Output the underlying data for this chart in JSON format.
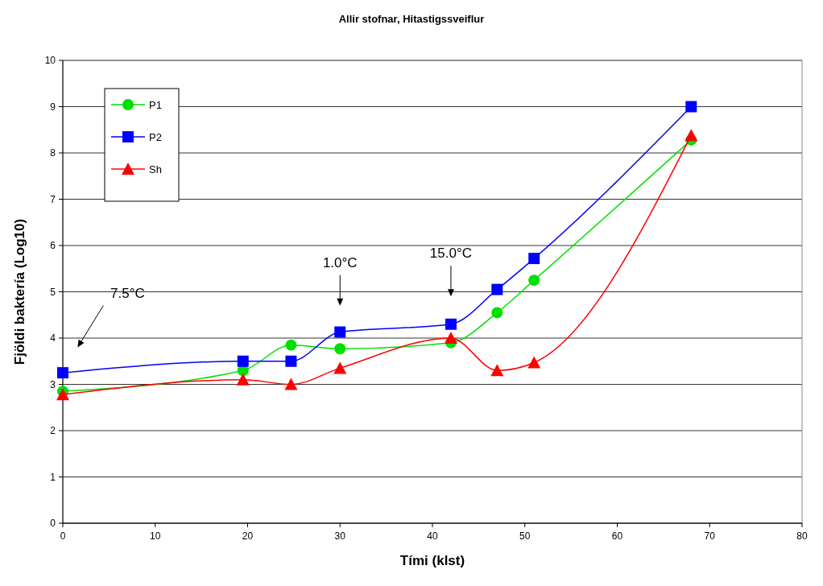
{
  "chart_data": {
    "type": "line",
    "title": "Allir stofnar, Hitastigssveiflur",
    "xlabel": "Tími (klst)",
    "ylabel": "Fjöldi baktería (Log10)",
    "xlim": [
      0,
      80
    ],
    "xticks": [
      0,
      10,
      20,
      30,
      40,
      50,
      60,
      70,
      80
    ],
    "ylim": [
      0,
      10
    ],
    "yticks": [
      0,
      1,
      2,
      3,
      4,
      5,
      6,
      7,
      8,
      9,
      10
    ],
    "grid": "y",
    "legend": "top left",
    "series": [
      {
        "name": "P1",
        "color": "#00e000",
        "marker": "circle",
        "x": [
          0,
          19.5,
          24.7,
          30,
          42,
          47,
          51,
          68
        ],
        "values": [
          2.85,
          3.3,
          3.85,
          3.77,
          3.9,
          4.55,
          5.25,
          8.28
        ]
      },
      {
        "name": "P2",
        "color": "#0000ff",
        "marker": "square",
        "x": [
          0,
          19.5,
          24.7,
          30,
          42,
          47,
          51,
          68
        ],
        "values": [
          3.25,
          3.5,
          3.5,
          4.13,
          4.3,
          5.05,
          5.72,
          9.0
        ]
      },
      {
        "name": "Sh",
        "color": "#ff0000",
        "marker": "triangle",
        "x": [
          0,
          19.5,
          24.7,
          30,
          42,
          47,
          51,
          68
        ],
        "values": [
          2.78,
          3.1,
          3.0,
          3.35,
          4.0,
          3.3,
          3.47,
          8.38
        ]
      }
    ],
    "annotations": [
      "7.5°C",
      "1.0°C",
      "15.0°C"
    ]
  }
}
